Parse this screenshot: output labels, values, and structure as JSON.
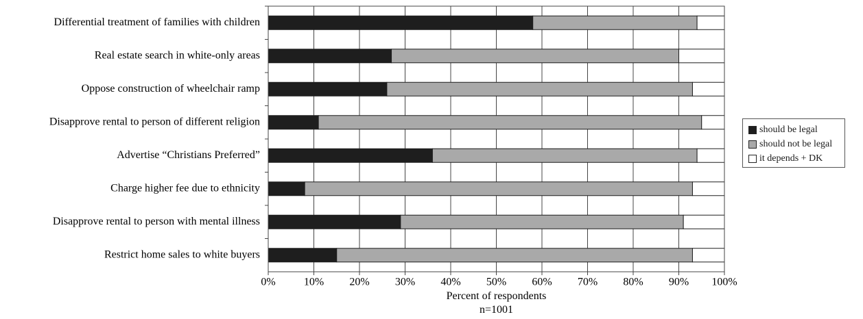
{
  "chart_data": {
    "type": "bar",
    "orientation": "horizontal",
    "stacked": true,
    "categories": [
      "Differential treatment of families with children",
      "Real estate search in white-only areas",
      "Oppose construction of wheelchair ramp",
      "Disapprove rental to person of different religion",
      "Advertise “Christians Preferred”",
      "Charge higher fee due to ethnicity",
      "Disapprove rental to person with mental illness",
      "Restrict home sales to white buyers"
    ],
    "series": [
      {
        "name": "should be legal",
        "color": "#1e1e1e",
        "values": [
          58,
          27,
          26,
          11,
          36,
          8,
          29,
          15
        ]
      },
      {
        "name": "should not be legal",
        "color": "#a9a9a9",
        "values": [
          36,
          63,
          67,
          84,
          58,
          85,
          62,
          78
        ]
      },
      {
        "name": "it depends + DK",
        "color": "#ffffff",
        "values": [
          6,
          10,
          7,
          5,
          6,
          7,
          9,
          7
        ]
      }
    ],
    "xlim": [
      0,
      100
    ],
    "xticks": [
      "0%",
      "10%",
      "20%",
      "30%",
      "40%",
      "50%",
      "60%",
      "70%",
      "80%",
      "90%",
      "100%"
    ],
    "xlabel": "Percent of respondents",
    "note": "n=1001",
    "grid": "vertical",
    "legend_position": "right"
  }
}
